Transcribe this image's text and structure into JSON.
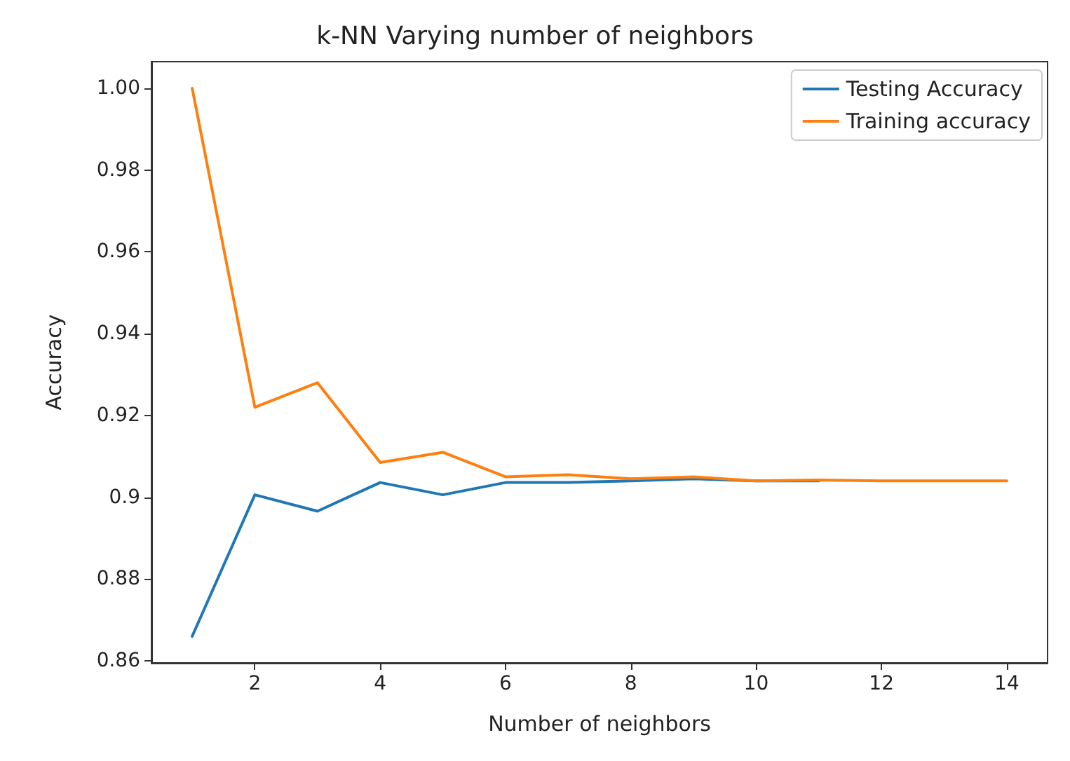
{
  "chart_data": {
    "type": "line",
    "title": "k-NN Varying number of neighbors",
    "xlabel": "Number of neighbors",
    "ylabel": "Accuracy",
    "x": [
      1,
      2,
      3,
      4,
      5,
      6,
      7,
      8,
      9,
      10,
      11,
      12,
      13,
      14
    ],
    "series": [
      {
        "name": "Testing Accuracy",
        "color": "#1f77b4",
        "values": [
          0.866,
          0.9006,
          0.8966,
          0.9036,
          0.9006,
          0.9036,
          0.9036,
          0.904,
          0.9045,
          0.904,
          0.904,
          null,
          null,
          null
        ]
      },
      {
        "name": "Training accuracy",
        "color": "#ff7f0e",
        "values": [
          1.0,
          0.922,
          0.928,
          0.9085,
          0.911,
          0.905,
          0.9055,
          0.9045,
          0.905,
          0.904,
          0.9042,
          0.904,
          0.904,
          0.904
        ]
      }
    ],
    "xlim": [
      0.35,
      14.65
    ],
    "xticks": [
      2,
      4,
      6,
      8,
      10,
      12,
      14
    ],
    "ylim": [
      0.8595,
      1.0065
    ],
    "yticks": [
      0.86,
      0.88,
      0.9,
      0.92,
      0.94,
      0.96,
      0.98,
      {
        "value": 1.0,
        "label": "1.00"
      }
    ],
    "legend": "top right",
    "grid": false,
    "marker": "none",
    "line_style": "solid"
  }
}
